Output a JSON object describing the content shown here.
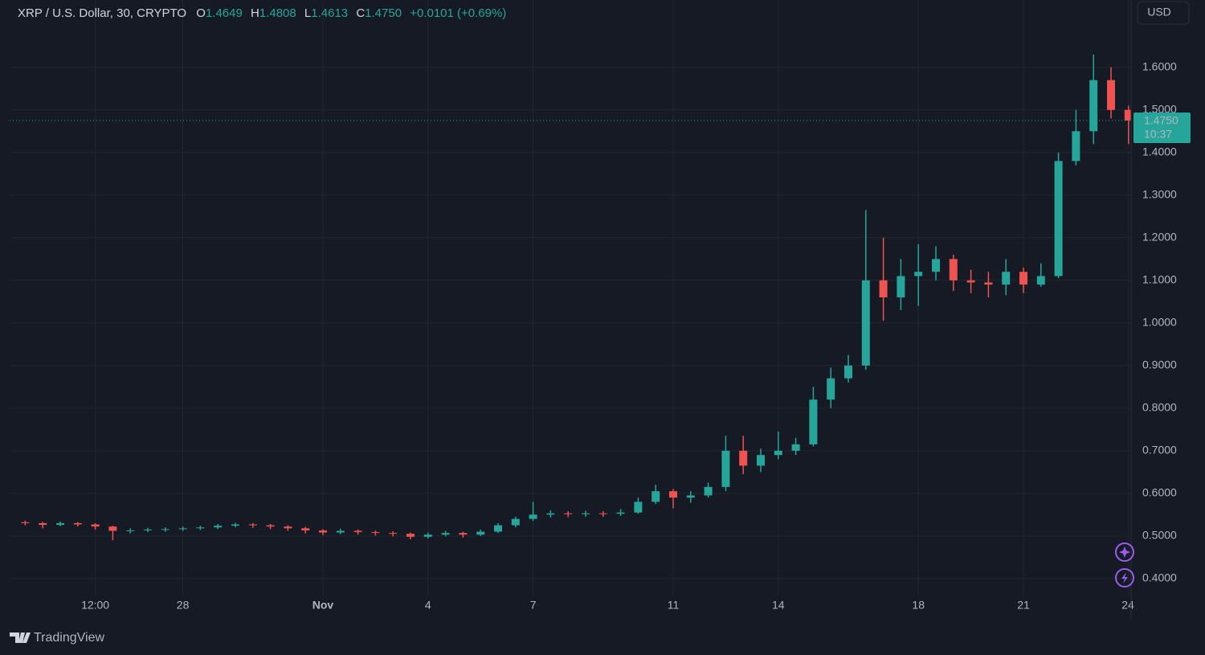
{
  "chart_data": {
    "type": "candlestick",
    "title": "XRP / U.S. Dollar, 30, CRYPTO",
    "ohlc_legend": [
      {
        "label": "O",
        "value": "1.4649"
      },
      {
        "label": "H",
        "value": "1.4808"
      },
      {
        "label": "L",
        "value": "1.4613"
      },
      {
        "label": "C",
        "value": "1.4750"
      }
    ],
    "change": "+0.0101 (+0.69%)",
    "currency": "USD",
    "branding": "TradingView",
    "categories": [
      null,
      null,
      null,
      null,
      "12:00",
      null,
      null,
      null,
      null,
      "28",
      null,
      null,
      null,
      null,
      null,
      null,
      null,
      "Nov",
      null,
      null,
      null,
      null,
      null,
      "4",
      null,
      null,
      null,
      null,
      null,
      "7",
      null,
      null,
      null,
      null,
      null,
      null,
      null,
      "11",
      null,
      null,
      null,
      null,
      null,
      "14",
      null,
      null,
      null,
      null,
      null,
      null,
      null,
      "18",
      null,
      null,
      null,
      null,
      null,
      "21",
      null,
      null,
      null,
      null,
      null,
      "24"
    ],
    "open": [
      0.532,
      0.53,
      0.526,
      0.53,
      0.527,
      0.522,
      0.512,
      0.513,
      0.515,
      0.516,
      0.518,
      0.52,
      0.524,
      0.527,
      0.525,
      0.522,
      0.518,
      0.513,
      0.508,
      0.512,
      0.509,
      0.507,
      0.505,
      0.498,
      0.503,
      0.507,
      0.503,
      0.51,
      0.525,
      0.54,
      0.55,
      0.553,
      0.551,
      0.553,
      0.552,
      0.555,
      0.58,
      0.605,
      0.59,
      0.595,
      0.615,
      0.7,
      0.665,
      0.69,
      0.7,
      0.715,
      0.82,
      0.87,
      0.9,
      1.1,
      1.06,
      1.11,
      1.12,
      1.15,
      1.1,
      1.095,
      1.09,
      1.12,
      1.09,
      1.11,
      1.38,
      1.45,
      1.57,
      1.5
    ],
    "high": [
      0.536,
      0.533,
      0.534,
      0.533,
      0.53,
      0.524,
      0.518,
      0.519,
      0.52,
      0.522,
      0.524,
      0.528,
      0.531,
      0.53,
      0.528,
      0.525,
      0.521,
      0.516,
      0.517,
      0.515,
      0.513,
      0.511,
      0.508,
      0.508,
      0.512,
      0.51,
      0.515,
      0.53,
      0.545,
      0.58,
      0.56,
      0.558,
      0.559,
      0.558,
      0.563,
      0.59,
      0.62,
      0.61,
      0.605,
      0.625,
      0.735,
      0.735,
      0.705,
      0.745,
      0.73,
      0.85,
      0.895,
      0.925,
      1.265,
      1.2,
      1.15,
      1.185,
      1.18,
      1.16,
      1.125,
      1.12,
      1.15,
      1.13,
      1.14,
      1.4,
      1.5,
      1.63,
      1.6,
      1.51
    ],
    "low": [
      0.525,
      0.518,
      0.523,
      0.522,
      0.515,
      0.49,
      0.506,
      0.509,
      0.51,
      0.512,
      0.514,
      0.516,
      0.52,
      0.519,
      0.516,
      0.512,
      0.506,
      0.502,
      0.504,
      0.503,
      0.501,
      0.499,
      0.492,
      0.494,
      0.499,
      0.496,
      0.5,
      0.507,
      0.52,
      0.535,
      0.543,
      0.544,
      0.545,
      0.545,
      0.547,
      0.552,
      0.575,
      0.565,
      0.578,
      0.59,
      0.605,
      0.645,
      0.65,
      0.68,
      0.69,
      0.71,
      0.8,
      0.86,
      0.89,
      1.005,
      1.03,
      1.04,
      1.1,
      1.075,
      1.07,
      1.06,
      1.065,
      1.07,
      1.085,
      1.105,
      1.37,
      1.42,
      1.48,
      1.42
    ],
    "close": [
      0.53,
      0.526,
      0.53,
      0.527,
      0.522,
      0.512,
      0.513,
      0.515,
      0.516,
      0.518,
      0.52,
      0.524,
      0.527,
      0.525,
      0.522,
      0.518,
      0.513,
      0.508,
      0.512,
      0.509,
      0.507,
      0.505,
      0.498,
      0.503,
      0.507,
      0.503,
      0.51,
      0.525,
      0.54,
      0.55,
      0.553,
      0.551,
      0.553,
      0.552,
      0.555,
      0.58,
      0.605,
      0.59,
      0.595,
      0.615,
      0.7,
      0.665,
      0.69,
      0.7,
      0.715,
      0.82,
      0.87,
      0.9,
      1.1,
      1.06,
      1.11,
      1.12,
      1.15,
      1.1,
      1.095,
      1.09,
      1.12,
      1.09,
      1.11,
      1.38,
      1.45,
      1.57,
      1.5,
      1.475
    ],
    "up_color": "#26a69a",
    "down_color": "#ef5350",
    "ylim": [
      0.362,
      1.758
    ],
    "yticks": [
      {
        "value": 0.4,
        "label": "0.4000"
      },
      {
        "value": 0.5,
        "label": "0.5000"
      },
      {
        "value": 0.6,
        "label": "0.6000"
      },
      {
        "value": 0.7,
        "label": "0.7000"
      },
      {
        "value": 0.8,
        "label": "0.8000"
      },
      {
        "value": 0.9,
        "label": "0.9000"
      },
      {
        "value": 1.0,
        "label": "1.0000"
      },
      {
        "value": 1.1,
        "label": "1.1000"
      },
      {
        "value": 1.2,
        "label": "1.2000"
      },
      {
        "value": 1.3,
        "label": "1.3000"
      },
      {
        "value": 1.4,
        "label": "1.4000"
      },
      {
        "value": 1.5,
        "label": "1.5000"
      },
      {
        "value": 1.6,
        "label": "1.6000"
      }
    ],
    "grid": true,
    "last_price": {
      "value": 1.475,
      "label": "1.4750"
    },
    "countdown": "10:37"
  }
}
